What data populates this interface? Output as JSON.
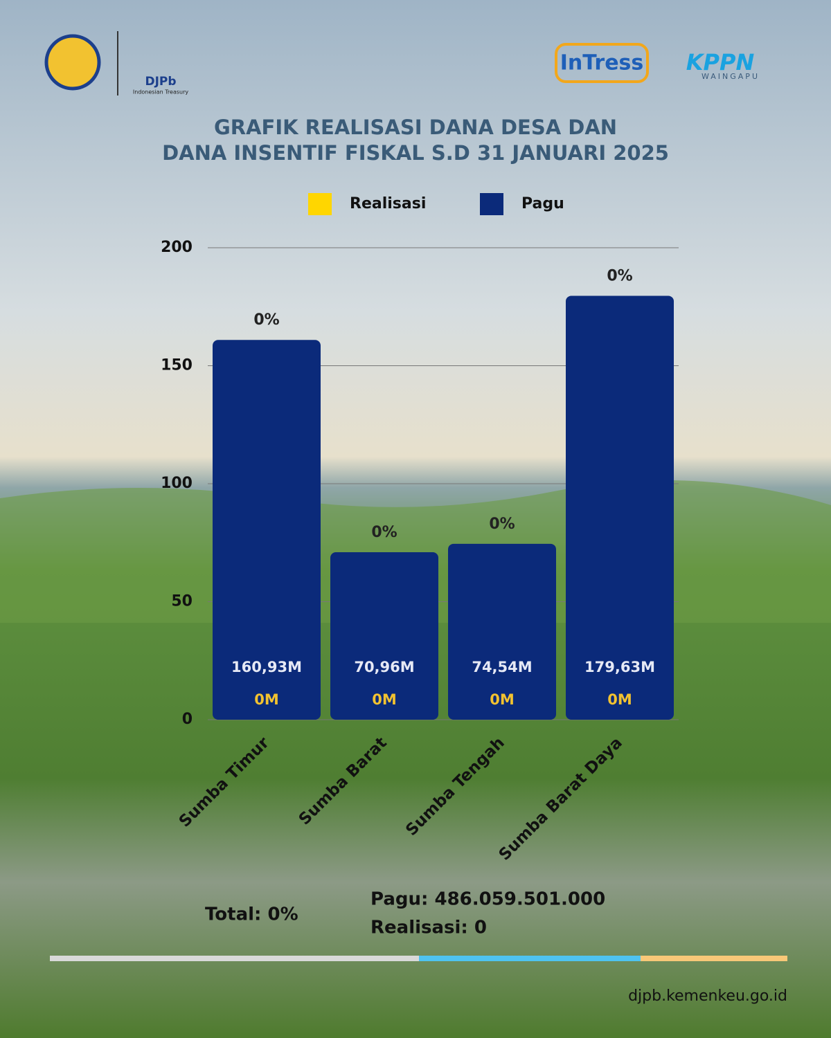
{
  "header": {
    "logo_left": "DJPb",
    "logo_left_sub": "Indonesian Treasury",
    "logo_right_1": "InTress",
    "logo_right_2": "KPPN",
    "logo_right_2_sub": "WAINGAPU"
  },
  "chart_data": {
    "type": "bar",
    "title": [
      "GRAFIK REALISASI DANA DESA DAN",
      "DANA INSENTIF FISKAL S.D 31 JANUARI 2025"
    ],
    "categories": [
      "Sumba Timur",
      "Sumba Barat",
      "Sumba Tengah",
      "Sumba Barat Daya"
    ],
    "series": [
      {
        "name": "Realisasi",
        "color": "#ffd600",
        "values": [
          0,
          0,
          0,
          0
        ],
        "value_labels": [
          "0M",
          "0M",
          "0M",
          "0M"
        ]
      },
      {
        "name": "Pagu",
        "color": "#0b2a7a",
        "values": [
          160.93,
          70.96,
          74.54,
          179.63
        ],
        "value_labels": [
          "160,93M",
          "70,96M",
          "74,54M",
          "179,63M"
        ]
      }
    ],
    "percent": {
      "values": [
        0,
        0,
        0,
        0
      ],
      "value_labels": [
        "0%",
        "0%",
        "0%",
        "0%"
      ]
    },
    "ylim": [
      0,
      200
    ],
    "yticks": [
      0,
      50,
      100,
      150,
      200
    ],
    "grid": true
  },
  "footer": {
    "total": "Total: 0%",
    "pagu": "Pagu: 486.059.501.000",
    "realisasi": "Realisasi: 0",
    "website": "djpb.kemenkeu.go.id"
  }
}
